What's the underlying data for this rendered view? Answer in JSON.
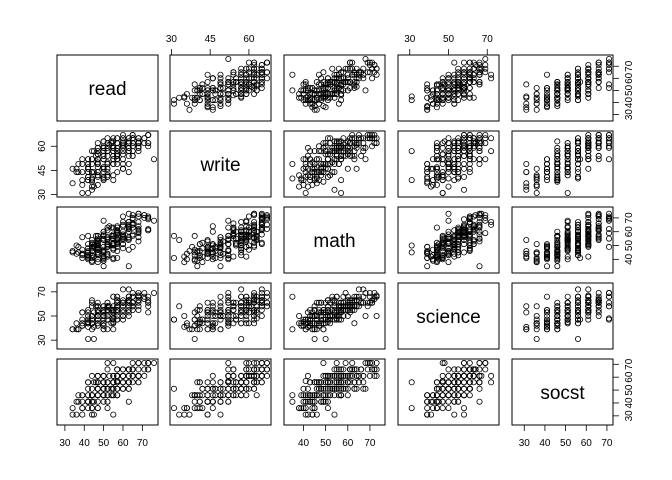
{
  "chart_data": {
    "type": "scatter",
    "title": "",
    "variables": [
      "read",
      "write",
      "math",
      "science",
      "socst"
    ],
    "ranges": {
      "read": [
        28,
        76
      ],
      "write": [
        31,
        67
      ],
      "math": [
        33,
        75
      ],
      "science": [
        26,
        74
      ],
      "socst": [
        26,
        71
      ]
    },
    "tick_values": {
      "read": [
        30,
        40,
        50,
        60,
        70
      ],
      "write": [
        30,
        45,
        60
      ],
      "math": [
        40,
        50,
        60,
        70
      ],
      "science": [
        30,
        50,
        70
      ],
      "socst": [
        30,
        40,
        50,
        60,
        70
      ]
    },
    "axis_sides": {
      "top": [
        "write",
        "science"
      ],
      "bottom": [
        "read",
        "math",
        "socst"
      ],
      "left": [
        "write",
        "science"
      ],
      "right": [
        "read",
        "math",
        "socst"
      ]
    },
    "points": [
      [
        57,
        52,
        41,
        47,
        57
      ],
      [
        68,
        59,
        53,
        63,
        61
      ],
      [
        44,
        33,
        54,
        58,
        31
      ],
      [
        63,
        44,
        47,
        53,
        56
      ],
      [
        47,
        52,
        57,
        53,
        61
      ],
      [
        44,
        52,
        51,
        63,
        61
      ],
      [
        50,
        59,
        42,
        53,
        61
      ],
      [
        34,
        46,
        45,
        39,
        36
      ],
      [
        63,
        57,
        54,
        58,
        51
      ],
      [
        57,
        55,
        52,
        50,
        51
      ],
      [
        60,
        46,
        51,
        53,
        61
      ],
      [
        57,
        65,
        51,
        63,
        61
      ],
      [
        73,
        60,
        71,
        61,
        71
      ],
      [
        54,
        63,
        57,
        55,
        46
      ],
      [
        45,
        57,
        50,
        31,
        56
      ],
      [
        42,
        49,
        43,
        50,
        56
      ],
      [
        47,
        52,
        51,
        50,
        56
      ],
      [
        57,
        57,
        60,
        58,
        56
      ],
      [
        68,
        65,
        62,
        55,
        61
      ],
      [
        55,
        39,
        57,
        53,
        46
      ],
      [
        63,
        49,
        35,
        66,
        41
      ],
      [
        63,
        63,
        60,
        66,
        56
      ],
      [
        50,
        40,
        45,
        55,
        56
      ],
      [
        60,
        52,
        57,
        61,
        61
      ],
      [
        37,
        44,
        45,
        39,
        46
      ],
      [
        34,
        37,
        46,
        39,
        31
      ],
      [
        65,
        65,
        66,
        61,
        66
      ],
      [
        47,
        57,
        57,
        58,
        46
      ],
      [
        44,
        38,
        49,
        39,
        46
      ],
      [
        52,
        44,
        49,
        55,
        41
      ],
      [
        42,
        31,
        57,
        47,
        51
      ],
      [
        76,
        52,
        68,
        69,
        71
      ],
      [
        65,
        67,
        65,
        58,
        61
      ],
      [
        42,
        41,
        46,
        44,
        56
      ],
      [
        52,
        59,
        49,
        47,
        71
      ],
      [
        60,
        65,
        65,
        72,
        56
      ],
      [
        68,
        57,
        61,
        61,
        56
      ],
      [
        65,
        54,
        57,
        61,
        66
      ],
      [
        47,
        62,
        50,
        53,
        61
      ],
      [
        39,
        31,
        41,
        47,
        36
      ],
      [
        47,
        42,
        38,
        44,
        36
      ],
      [
        55,
        52,
        51,
        55,
        46
      ],
      [
        52,
        41,
        51,
        58,
        36
      ],
      [
        39,
        49,
        56,
        53,
        46
      ],
      [
        50,
        52,
        57,
        55,
        56
      ],
      [
        63,
        62,
        73,
        50,
        66
      ],
      [
        42,
        41,
        51,
        45,
        41
      ],
      [
        55,
        49,
        41,
        39,
        31
      ],
      [
        65,
        62,
        49,
        55,
        61
      ],
      [
        55,
        52,
        40,
        45,
        51
      ],
      [
        50,
        63,
        60,
        58,
        61
      ],
      [
        65,
        54,
        66,
        61,
        66
      ],
      [
        44,
        44,
        48,
        61,
        51
      ],
      [
        47,
        59,
        54,
        55,
        61
      ],
      [
        73,
        67,
        69,
        61,
        66
      ],
      [
        47,
        55,
        50,
        47,
        56
      ],
      [
        50,
        59,
        68,
        50,
        51
      ],
      [
        55,
        63,
        55,
        48,
        71
      ],
      [
        57,
        62,
        64,
        63,
        61
      ],
      [
        42,
        52,
        43,
        44,
        41
      ],
      [
        52,
        42,
        42,
        47,
        51
      ],
      [
        37,
        49,
        49,
        39,
        41
      ],
      [
        57,
        52,
        55,
        66,
        66
      ],
      [
        52,
        41,
        43,
        55,
        56
      ],
      [
        50,
        46,
        60,
        50,
        51
      ],
      [
        73,
        67,
        62,
        58,
        71
      ],
      [
        50,
        40,
        35,
        39,
        46
      ],
      [
        44,
        35,
        38,
        50,
        36
      ],
      [
        44,
        44,
        48,
        44,
        41
      ],
      [
        42,
        52,
        43,
        44,
        46
      ],
      [
        47,
        57,
        47,
        61,
        51
      ],
      [
        50,
        63,
        54,
        53,
        56
      ],
      [
        52,
        46,
        51,
        55,
        51
      ],
      [
        65,
        65,
        65,
        66,
        61
      ],
      [
        52,
        50,
        44,
        50,
        46
      ],
      [
        42,
        46,
        45,
        44,
        41
      ],
      [
        65,
        67,
        72,
        69,
        66
      ],
      [
        55,
        60,
        50,
        53,
        61
      ],
      [
        68,
        62,
        67,
        66,
        56
      ],
      [
        47,
        49,
        45,
        58,
        46
      ],
      [
        60,
        59,
        58,
        61,
        51
      ],
      [
        44,
        39,
        43,
        47,
        46
      ],
      [
        39,
        36,
        44,
        44,
        36
      ],
      [
        63,
        59,
        55,
        66,
        56
      ],
      [
        71,
        65,
        70,
        69,
        71
      ],
      [
        42,
        49,
        48,
        53,
        41
      ],
      [
        60,
        63,
        54,
        63,
        66
      ],
      [
        57,
        55,
        60,
        61,
        46
      ],
      [
        52,
        62,
        56,
        47,
        56
      ],
      [
        73,
        67,
        70,
        66,
        71
      ],
      [
        39,
        44,
        44,
        53,
        31
      ],
      [
        55,
        54,
        58,
        55,
        51
      ],
      [
        47,
        52,
        51,
        53,
        56
      ],
      [
        60,
        49,
        56,
        50,
        51
      ],
      [
        44,
        44,
        41,
        47,
        41
      ],
      [
        63,
        62,
        65,
        63,
        56
      ],
      [
        57,
        59,
        61,
        58,
        66
      ],
      [
        57,
        57,
        63,
        55,
        56
      ],
      [
        50,
        44,
        46,
        47,
        51
      ],
      [
        68,
        65,
        71,
        63,
        66
      ],
      [
        50,
        46,
        40,
        42,
        46
      ],
      [
        46,
        54,
        57,
        58,
        56
      ],
      [
        36,
        44,
        44,
        39,
        31
      ],
      [
        57,
        49,
        49,
        55,
        46
      ],
      [
        54,
        62,
        63,
        44,
        51
      ],
      [
        47,
        44,
        44,
        50,
        41
      ],
      [
        60,
        46,
        48,
        61,
        56
      ],
      [
        42,
        39,
        45,
        31,
        36
      ],
      [
        55,
        60,
        57,
        58,
        61
      ],
      [
        36,
        46,
        50,
        44,
        41
      ],
      [
        45,
        35,
        42,
        41,
        31
      ],
      [
        68,
        60,
        60,
        63,
        61
      ],
      [
        44,
        49,
        52,
        50,
        46
      ],
      [
        71,
        65,
        72,
        66,
        61
      ],
      [
        63,
        59,
        67,
        61,
        51
      ],
      [
        50,
        54,
        42,
        44,
        46
      ],
      [
        47,
        36,
        40,
        42,
        36
      ],
      [
        55,
        65,
        52,
        50,
        56
      ],
      [
        52,
        46,
        44,
        39,
        41
      ],
      [
        50,
        54,
        55,
        50,
        51
      ],
      [
        57,
        52,
        54,
        47,
        61
      ],
      [
        52,
        57,
        56,
        58,
        56
      ],
      [
        44,
        40,
        46,
        50,
        46
      ],
      [
        50,
        41,
        41,
        39,
        41
      ],
      [
        57,
        65,
        58,
        61,
        66
      ],
      [
        68,
        59,
        64,
        66,
        61
      ],
      [
        42,
        46,
        42,
        41,
        41
      ],
      [
        47,
        59,
        49,
        44,
        46
      ],
      [
        39,
        52,
        43,
        42,
        41
      ],
      [
        60,
        55,
        51,
        47,
        56
      ],
      [
        47,
        41,
        43,
        47,
        46
      ],
      [
        55,
        59,
        57,
        55,
        56
      ],
      [
        52,
        57,
        50,
        61,
        51
      ],
      [
        50,
        39,
        39,
        42,
        46
      ],
      [
        68,
        63,
        56,
        58,
        61
      ],
      [
        57,
        62,
        59,
        55,
        51
      ],
      [
        65,
        57,
        58,
        66,
        56
      ],
      [
        47,
        42,
        52,
        47,
        46
      ],
      [
        60,
        57,
        60,
        55,
        61
      ],
      [
        63,
        65,
        62,
        63,
        66
      ],
      [
        52,
        49,
        50,
        47,
        46
      ],
      [
        55,
        52,
        63,
        66,
        56
      ],
      [
        50,
        60,
        47,
        44,
        51
      ],
      [
        57,
        44,
        54,
        53,
        46
      ],
      [
        73,
        62,
        61,
        63,
        66
      ],
      [
        57,
        54,
        59,
        58,
        61
      ],
      [
        47,
        49,
        45,
        50,
        46
      ],
      [
        65,
        60,
        63,
        58,
        66
      ],
      [
        44,
        57,
        43,
        44,
        46
      ],
      [
        50,
        52,
        54,
        53,
        51
      ],
      [
        60,
        67,
        71,
        61,
        66
      ],
      [
        55,
        52,
        47,
        55,
        56
      ],
      [
        42,
        39,
        40,
        47,
        41
      ],
      [
        50,
        47,
        49,
        53,
        51
      ],
      [
        68,
        62,
        73,
        67,
        61
      ],
      [
        57,
        62,
        52,
        61,
        61
      ],
      [
        55,
        49,
        51,
        53,
        56
      ],
      [
        63,
        54,
        62,
        61,
        61
      ],
      [
        47,
        50,
        53,
        50,
        51
      ],
      [
        50,
        54,
        57,
        58,
        46
      ],
      [
        45,
        44,
        49,
        53,
        41
      ],
      [
        60,
        62,
        55,
        50,
        56
      ],
      [
        52,
        54,
        63,
        58,
        51
      ],
      [
        55,
        57,
        52,
        44,
        56
      ],
      [
        42,
        47,
        41,
        44,
        46
      ],
      [
        73,
        62,
        61,
        53,
        66
      ],
      [
        57,
        57,
        53,
        66,
        51
      ],
      [
        63,
        57,
        67,
        72,
        61
      ],
      [
        47,
        55,
        55,
        47,
        51
      ],
      [
        53,
        61,
        64,
        58,
        61
      ],
      [
        63,
        59,
        56,
        55,
        66
      ],
      [
        60,
        46,
        64,
        58,
        51
      ],
      [
        65,
        65,
        69,
        58,
        71
      ],
      [
        50,
        57,
        45,
        50,
        56
      ],
      [
        65,
        65,
        70,
        61,
        61
      ],
      [
        55,
        42,
        48,
        47,
        51
      ],
      [
        57,
        52,
        46,
        61,
        56
      ],
      [
        52,
        65,
        61,
        58,
        66
      ],
      [
        68,
        65,
        73,
        66,
        71
      ],
      [
        44,
        40,
        39,
        44,
        36
      ],
      [
        57,
        59,
        60,
        55,
        56
      ],
      [
        63,
        65,
        63,
        63,
        66
      ],
      [
        47,
        44,
        53,
        55,
        51
      ],
      [
        55,
        57,
        48,
        53,
        56
      ],
      [
        39,
        39,
        47,
        42,
        46
      ],
      [
        60,
        60,
        56,
        61,
        61
      ],
      [
        52,
        49,
        54,
        61,
        51
      ],
      [
        71,
        62,
        72,
        64,
        66
      ],
      [
        44,
        52,
        46,
        47,
        46
      ],
      [
        60,
        61,
        58,
        58,
        61
      ],
      [
        63,
        62,
        64,
        63,
        66
      ],
      [
        50,
        47,
        46,
        50,
        46
      ],
      [
        42,
        44,
        45,
        55,
        41
      ],
      [
        57,
        54,
        61,
        55,
        61
      ],
      [
        68,
        62,
        59,
        69,
        71
      ],
      [
        55,
        59,
        55,
        66,
        61
      ],
      [
        47,
        47,
        48,
        50,
        51
      ],
      [
        60,
        65,
        67,
        61,
        61
      ],
      [
        52,
        57,
        55,
        53,
        51
      ],
      [
        50,
        57,
        58,
        50,
        61
      ]
    ]
  }
}
